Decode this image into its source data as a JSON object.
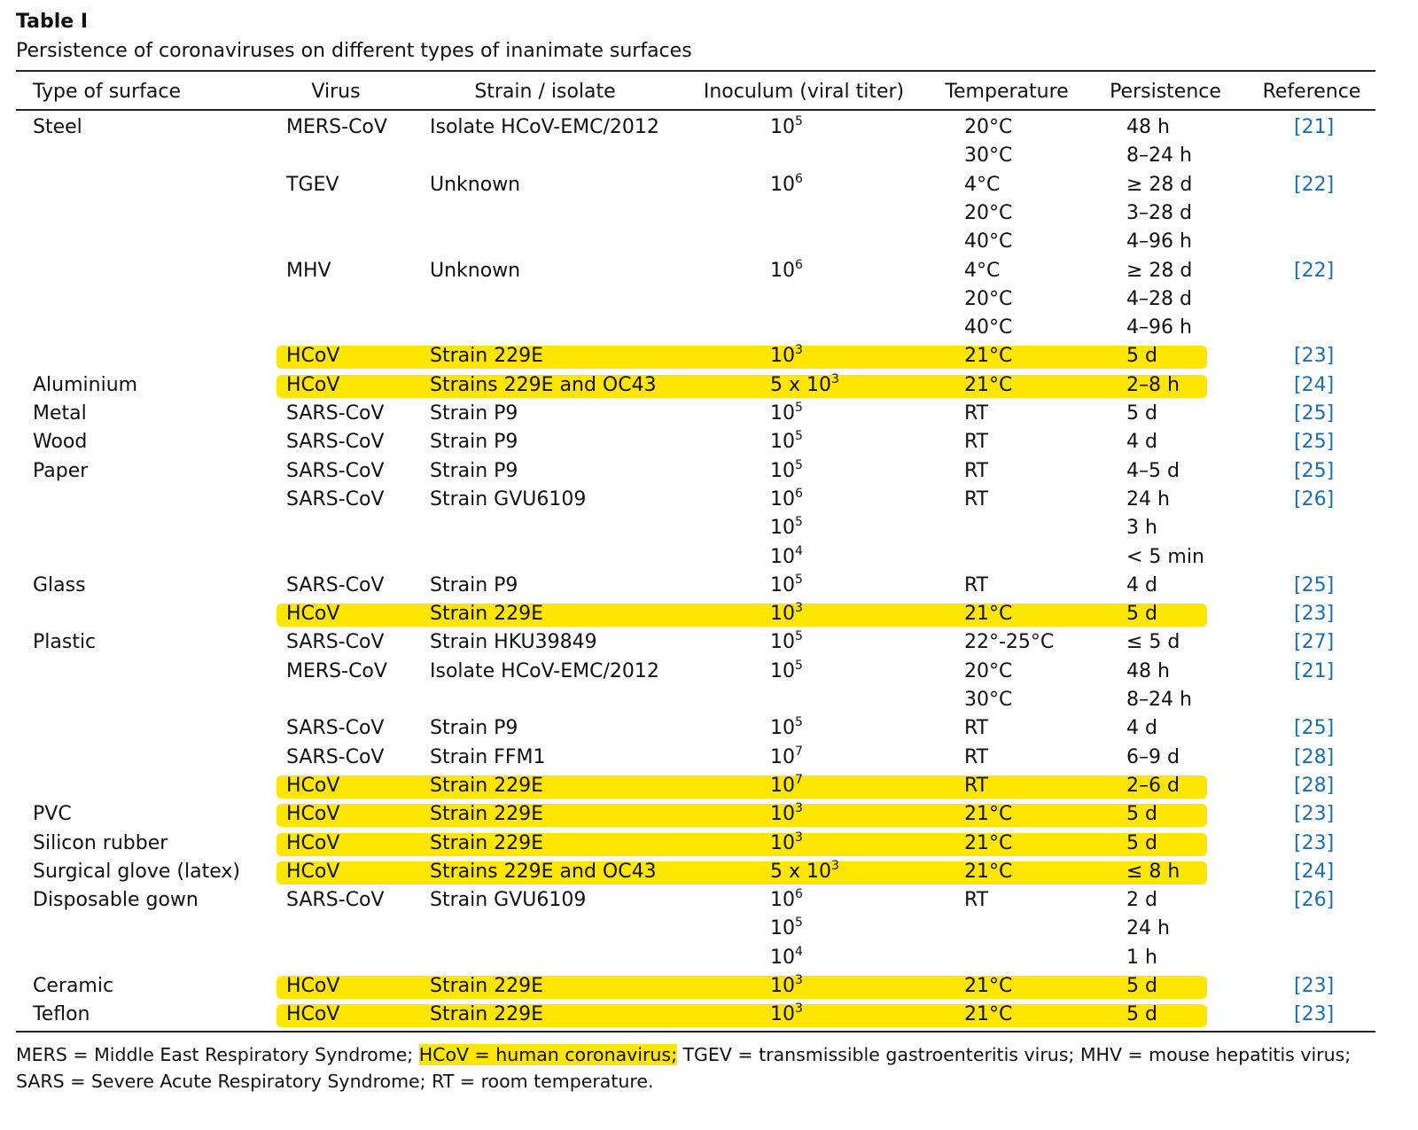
{
  "title": "Table I",
  "caption": "Persistence of coronaviruses on different types of inanimate surfaces",
  "table": {
    "header": {
      "surface": "Type of surface",
      "virus": "Virus",
      "strain": "Strain / isolate",
      "inoculum": "Inoculum (viral titer)",
      "temperature": "Temperature",
      "persistence": "Persistence",
      "reference": "Reference"
    },
    "rows": [
      {
        "surface": "Steel",
        "virus": "MERS-CoV",
        "strain": "Isolate HCoV-EMC/2012",
        "inoculum": {
          "base": "10",
          "exp": "5"
        },
        "temperature": "20°C",
        "persistence": "48 h",
        "reference": "[21]"
      },
      {
        "temperature": "30°C",
        "persistence": "8–24 h"
      },
      {
        "virus": "TGEV",
        "strain": "Unknown",
        "inoculum": {
          "base": "10",
          "exp": "6"
        },
        "temperature": "4°C",
        "persistence": "≥ 28 d",
        "reference": "[22]"
      },
      {
        "temperature": "20°C",
        "persistence": "3–28 d"
      },
      {
        "temperature": "40°C",
        "persistence": "4–96 h"
      },
      {
        "virus": "MHV",
        "strain": "Unknown",
        "inoculum": {
          "base": "10",
          "exp": "6"
        },
        "temperature": "4°C",
        "persistence": "≥ 28 d",
        "reference": "[22]"
      },
      {
        "temperature": "20°C",
        "persistence": "4–28 d"
      },
      {
        "temperature": "40°C",
        "persistence": "4–96 h"
      },
      {
        "virus": "HCoV",
        "strain": "Strain 229E",
        "inoculum": {
          "base": "10",
          "exp": "3"
        },
        "temperature": "21°C",
        "persistence": "5 d",
        "reference": "[23]",
        "highlight": true
      },
      {
        "surface": "Aluminium",
        "virus": "HCoV",
        "strain": "Strains 229E and OC43",
        "inoculum": {
          "base": "5 x 10",
          "exp": "3"
        },
        "temperature": "21°C",
        "persistence": "2–8 h",
        "reference": "[24]",
        "highlight": true
      },
      {
        "surface": "Metal",
        "virus": "SARS-CoV",
        "strain": "Strain P9",
        "inoculum": {
          "base": "10",
          "exp": "5"
        },
        "temperature": "RT",
        "persistence": "5 d",
        "reference": "[25]"
      },
      {
        "surface": "Wood",
        "virus": "SARS-CoV",
        "strain": "Strain P9",
        "inoculum": {
          "base": "10",
          "exp": "5"
        },
        "temperature": "RT",
        "persistence": "4 d",
        "reference": "[25]"
      },
      {
        "surface": "Paper",
        "virus": "SARS-CoV",
        "strain": "Strain P9",
        "inoculum": {
          "base": "10",
          "exp": "5"
        },
        "temperature": "RT",
        "persistence": "4–5 d",
        "reference": "[25]"
      },
      {
        "virus": "SARS-CoV",
        "strain": "Strain GVU6109",
        "inoculum": {
          "base": "10",
          "exp": "6"
        },
        "temperature": "RT",
        "persistence": "24 h",
        "reference": "[26]"
      },
      {
        "inoculum": {
          "base": "10",
          "exp": "5"
        },
        "persistence": "3 h"
      },
      {
        "inoculum": {
          "base": "10",
          "exp": "4"
        },
        "persistence": "< 5 min"
      },
      {
        "surface": "Glass",
        "virus": "SARS-CoV",
        "strain": "Strain P9",
        "inoculum": {
          "base": "10",
          "exp": "5"
        },
        "temperature": "RT",
        "persistence": "4 d",
        "reference": "[25]"
      },
      {
        "virus": "HCoV",
        "strain": "Strain 229E",
        "inoculum": {
          "base": "10",
          "exp": "3"
        },
        "temperature": "21°C",
        "persistence": "5 d",
        "reference": "[23]",
        "highlight": true
      },
      {
        "surface": "Plastic",
        "virus": "SARS-CoV",
        "strain": "Strain HKU39849",
        "inoculum": {
          "base": "10",
          "exp": "5"
        },
        "temperature": "22°-25°C",
        "persistence": "≤ 5 d",
        "reference": "[27]"
      },
      {
        "virus": "MERS-CoV",
        "strain": "Isolate HCoV-EMC/2012",
        "inoculum": {
          "base": "10",
          "exp": "5"
        },
        "temperature": "20°C",
        "persistence": "48 h",
        "reference": "[21]"
      },
      {
        "temperature": "30°C",
        "persistence": "8–24 h"
      },
      {
        "virus": "SARS-CoV",
        "strain": "Strain P9",
        "inoculum": {
          "base": "10",
          "exp": "5"
        },
        "temperature": "RT",
        "persistence": "4 d",
        "reference": "[25]"
      },
      {
        "virus": "SARS-CoV",
        "strain": "Strain FFM1",
        "inoculum": {
          "base": "10",
          "exp": "7"
        },
        "temperature": "RT",
        "persistence": "6–9 d",
        "reference": "[28]"
      },
      {
        "virus": "HCoV",
        "strain": "Strain 229E",
        "inoculum": {
          "base": "10",
          "exp": "7"
        },
        "temperature": "RT",
        "persistence": "2–6 d",
        "reference": "[28]",
        "highlight": true
      },
      {
        "surface": "PVC",
        "virus": "HCoV",
        "strain": "Strain 229E",
        "inoculum": {
          "base": "10",
          "exp": "3"
        },
        "temperature": "21°C",
        "persistence": "5 d",
        "reference": "[23]",
        "highlight": true
      },
      {
        "surface": "Silicon rubber",
        "virus": "HCoV",
        "strain": "Strain 229E",
        "inoculum": {
          "base": "10",
          "exp": "3"
        },
        "temperature": "21°C",
        "persistence": "5 d",
        "reference": "[23]",
        "highlight": true
      },
      {
        "surface": "Surgical glove (latex)",
        "virus": "HCoV",
        "strain": "Strains 229E and OC43",
        "inoculum": {
          "base": "5 x 10",
          "exp": "3"
        },
        "temperature": "21°C",
        "persistence": "≤ 8 h",
        "reference": "[24]",
        "highlight": true
      },
      {
        "surface": "Disposable gown",
        "virus": "SARS-CoV",
        "strain": "Strain GVU6109",
        "inoculum": {
          "base": "10",
          "exp": "6"
        },
        "temperature": "RT",
        "persistence": "2 d",
        "reference": "[26]"
      },
      {
        "inoculum": {
          "base": "10",
          "exp": "5"
        },
        "persistence": "24 h"
      },
      {
        "inoculum": {
          "base": "10",
          "exp": "4"
        },
        "persistence": "1 h"
      },
      {
        "surface": "Ceramic",
        "virus": "HCoV",
        "strain": "Strain 229E",
        "inoculum": {
          "base": "10",
          "exp": "3"
        },
        "temperature": "21°C",
        "persistence": "5 d",
        "reference": "[23]",
        "highlight": true
      },
      {
        "surface": "Teflon",
        "virus": "HCoV",
        "strain": "Strain 229E",
        "inoculum": {
          "base": "10",
          "exp": "3"
        },
        "temperature": "21°C",
        "persistence": "5 d",
        "reference": "[23]",
        "highlight": true
      }
    ]
  },
  "footnote": {
    "lines": [
      [
        {
          "text": "MERS = Middle East Respiratory Syndrome; "
        },
        {
          "text": "HCoV = human coronavirus;",
          "highlight": true
        },
        {
          "text": " TGEV = transmissible gastroenteritis virus; MHV = mouse hepatitis virus;"
        }
      ],
      [
        {
          "text": "SARS = Severe Acute Respiratory Syndrome; RT = room temperature."
        }
      ]
    ]
  }
}
